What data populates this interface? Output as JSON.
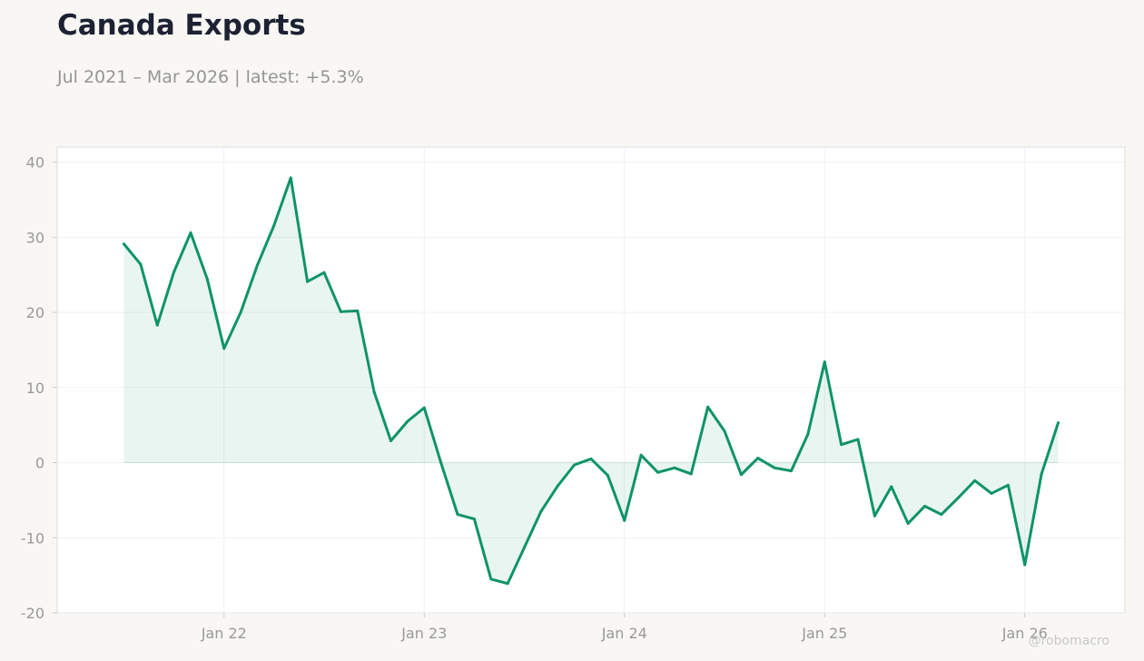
{
  "header": {
    "title": "Canada Exports",
    "subtitle": "Jul 2021 – Mar 2026 | latest: +5.3%"
  },
  "watermark": "@robomacro",
  "colors": {
    "line": "#0e9466",
    "fill": "#0e9466",
    "background": "#f8f7f3",
    "plot_background": "#ffffff",
    "grid": "#eeeeee",
    "frame": "#dddddd",
    "tick_text": "#999999",
    "title": "#1c2233"
  },
  "chart_data": {
    "type": "area",
    "title": "Canada Exports",
    "subtitle": "Jul 2021 – Mar 2026 | latest: +5.3%",
    "xlabel": "",
    "ylabel": "",
    "ylim": [
      -20,
      42
    ],
    "xlim": [
      "2021-03",
      "2026-07"
    ],
    "yticks": [
      -20,
      -10,
      0,
      10,
      20,
      30,
      40
    ],
    "ytick_labels": [
      "-20",
      "-10",
      "0",
      "10",
      "20",
      "30",
      "40"
    ],
    "xticks": [
      "2022-01",
      "2023-01",
      "2024-01",
      "2025-01",
      "2026-01"
    ],
    "xtick_labels": [
      "Jan 22",
      "Jan 23",
      "Jan 24",
      "Jan 25",
      "Jan 26"
    ],
    "grid": true,
    "fill_to_zero": true,
    "series": [
      {
        "x": [
          "2021-07",
          "2021-08",
          "2021-09",
          "2021-10",
          "2021-11",
          "2021-12",
          "2022-01",
          "2022-02",
          "2022-03",
          "2022-04",
          "2022-05",
          "2022-06",
          "2022-07",
          "2022-08",
          "2022-09",
          "2022-10",
          "2022-11",
          "2022-12",
          "2023-01",
          "2023-02",
          "2023-03",
          "2023-04",
          "2023-05",
          "2023-06",
          "2023-07",
          "2023-08",
          "2023-09",
          "2023-10",
          "2023-11",
          "2023-12",
          "2024-01",
          "2024-02",
          "2024-03",
          "2024-04",
          "2024-05",
          "2024-06",
          "2024-07",
          "2024-08",
          "2024-09",
          "2024-10",
          "2024-11",
          "2024-12",
          "2025-01",
          "2025-02",
          "2025-03",
          "2025-04",
          "2025-05",
          "2025-06",
          "2025-07",
          "2025-08",
          "2025-09",
          "2025-10",
          "2025-11",
          "2025-12",
          "2026-01",
          "2026-02",
          "2026-03"
        ],
        "values": [
          29.1,
          26.4,
          18.3,
          25.4,
          30.6,
          24.4,
          15.2,
          20.0,
          26.3,
          31.6,
          37.9,
          24.1,
          25.3,
          20.1,
          20.2,
          9.4,
          2.9,
          5.5,
          7.3,
          0.0,
          -6.9,
          -7.5,
          -15.5,
          -16.1,
          -11.3,
          -6.5,
          -3.1,
          -0.3,
          0.5,
          -1.7,
          -7.7,
          1.0,
          -1.3,
          -0.7,
          -1.5,
          7.4,
          4.2,
          -1.6,
          0.6,
          -0.7,
          -1.1,
          3.8,
          13.4,
          2.4,
          3.1,
          -7.1,
          -3.2,
          -8.1,
          -5.8,
          -6.9,
          -4.7,
          -2.4,
          -4.1,
          -3.0,
          -13.6,
          -1.5,
          5.3
        ]
      }
    ]
  }
}
